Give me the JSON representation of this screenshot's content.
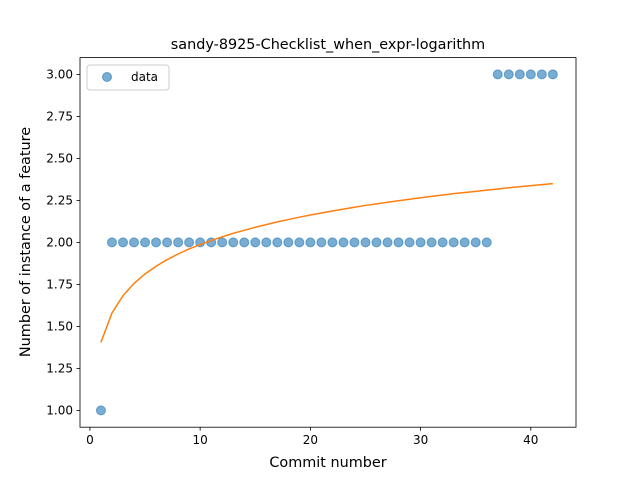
{
  "chart_data": {
    "type": "scatter",
    "title": "sandy-8925-Checklist_when_expr-logarithm",
    "xlabel": "Commit number",
    "ylabel": "Number of instance of a feature",
    "xlim": [
      -0.9,
      44.1
    ],
    "ylim": [
      0.9,
      3.1
    ],
    "xticks": [
      0,
      10,
      20,
      30,
      40
    ],
    "xtick_labels": [
      "0",
      "10",
      "20",
      "30",
      "40"
    ],
    "yticks": [
      1.0,
      1.25,
      1.5,
      1.75,
      2.0,
      2.25,
      2.5,
      2.75,
      3.0
    ],
    "ytick_labels": [
      "1.00",
      "1.25",
      "1.50",
      "1.75",
      "2.00",
      "2.25",
      "2.50",
      "2.75",
      "3.00"
    ],
    "grid": false,
    "legend_position": "top-left",
    "series": [
      {
        "name": "data",
        "kind": "scatter",
        "color": "#1f77b4",
        "x": [
          1,
          2,
          3,
          4,
          5,
          6,
          7,
          8,
          9,
          10,
          11,
          12,
          13,
          14,
          15,
          16,
          17,
          18,
          19,
          20,
          21,
          22,
          23,
          24,
          25,
          26,
          27,
          28,
          29,
          30,
          31,
          32,
          33,
          34,
          35,
          36,
          37,
          38,
          39,
          40,
          41,
          42
        ],
        "y": [
          1,
          2,
          2,
          2,
          2,
          2,
          2,
          2,
          2,
          2,
          2,
          2,
          2,
          2,
          2,
          2,
          2,
          2,
          2,
          2,
          2,
          2,
          2,
          2,
          2,
          2,
          2,
          2,
          2,
          2,
          2,
          2,
          2,
          2,
          2,
          2,
          3,
          3,
          3,
          3,
          3,
          3
        ]
      },
      {
        "kind": "line",
        "color": "#ff7f0e",
        "x": [
          1,
          2,
          3,
          4,
          5,
          6,
          7,
          8,
          9,
          10,
          11,
          12,
          13,
          14,
          15,
          16,
          17,
          18,
          19,
          20,
          21,
          22,
          23,
          24,
          25,
          26,
          27,
          28,
          29,
          30,
          31,
          32,
          33,
          34,
          35,
          36,
          37,
          38,
          39,
          40,
          41,
          42
        ],
        "y": [
          1.405,
          1.58,
          1.683,
          1.756,
          1.812,
          1.858,
          1.897,
          1.931,
          1.961,
          1.987,
          2.011,
          2.033,
          2.054,
          2.072,
          2.09,
          2.106,
          2.122,
          2.136,
          2.15,
          2.163,
          2.175,
          2.187,
          2.198,
          2.209,
          2.22,
          2.229,
          2.239,
          2.248,
          2.257,
          2.266,
          2.274,
          2.282,
          2.29,
          2.297,
          2.304,
          2.311,
          2.318,
          2.325,
          2.331,
          2.338,
          2.344,
          2.35
        ]
      }
    ]
  }
}
